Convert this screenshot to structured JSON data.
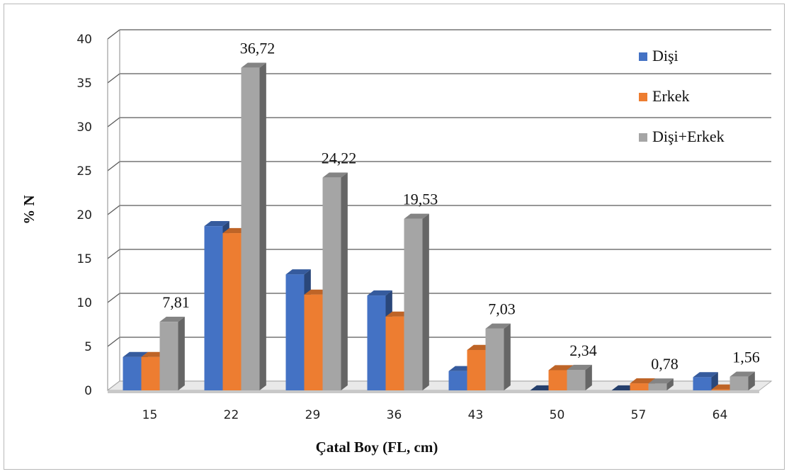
{
  "chart_data": {
    "type": "bar",
    "title": "",
    "xlabel": "Çatal Boy (FL, cm)",
    "ylabel": "% N",
    "ylim": [
      0,
      40
    ],
    "yticks": [
      0,
      5,
      10,
      15,
      20,
      25,
      30,
      35,
      40
    ],
    "categories": [
      "15",
      "22",
      "29",
      "36",
      "43",
      "50",
      "57",
      "64"
    ],
    "series": [
      {
        "name": "Dişi",
        "color": "#4472c4",
        "values": [
          3.8,
          18.7,
          13.2,
          10.8,
          2.2,
          0,
          0,
          1.5
        ]
      },
      {
        "name": "Erkek",
        "color": "#ed7d31",
        "values": [
          3.8,
          17.9,
          10.9,
          8.4,
          4.6,
          2.3,
          0.8,
          0.1
        ]
      },
      {
        "name": "Dişi+Erkek",
        "color": "#a5a5a5",
        "values": [
          7.81,
          36.72,
          24.22,
          19.53,
          7.03,
          2.34,
          0.78,
          1.56
        ]
      }
    ],
    "data_labels": [
      "7,81",
      "36,72",
      "24,22",
      "19,53",
      "7,03",
      "2,34",
      "0,78",
      "1,56"
    ],
    "grid": true,
    "legend_position": "top-right"
  }
}
